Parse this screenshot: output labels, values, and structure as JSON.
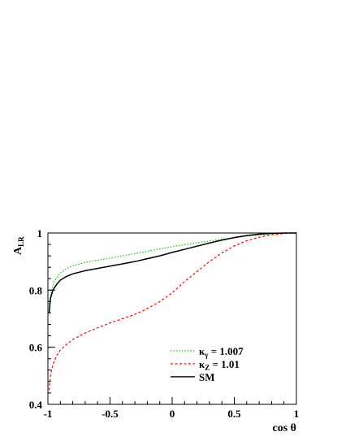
{
  "chart_data": {
    "type": "line",
    "xlabel": "cos θ",
    "ylabel": {
      "main": "A",
      "sub": "LR"
    },
    "xlim": [
      -1,
      1
    ],
    "ylim": [
      0.4,
      1.0
    ],
    "x_ticks": [
      -1,
      -0.5,
      0,
      0.5,
      1
    ],
    "x_tick_labels": [
      "-1",
      "-0.5",
      "0",
      "0.5",
      "1"
    ],
    "y_ticks": [
      0.4,
      0.6,
      0.8,
      1.0
    ],
    "y_tick_labels": [
      "0.4",
      "0.6",
      "0.8",
      "1"
    ],
    "grid": false,
    "legend_position": "bottom-right",
    "series": [
      {
        "name": "κγ = 1.007",
        "label": {
          "main": "κ",
          "sub": "γ",
          "rest": " = 1.007"
        },
        "color": "#00cc00",
        "style": "dotted",
        "x": [
          -0.99,
          -0.97,
          -0.95,
          -0.9,
          -0.85,
          -0.8,
          -0.7,
          -0.6,
          -0.5,
          -0.4,
          -0.3,
          -0.2,
          -0.1,
          0.0,
          0.1,
          0.2,
          0.3,
          0.4,
          0.5,
          0.6,
          0.7,
          0.8,
          0.9,
          0.95,
          1.0
        ],
        "y": [
          0.75,
          0.8,
          0.83,
          0.86,
          0.875,
          0.885,
          0.897,
          0.905,
          0.912,
          0.92,
          0.928,
          0.936,
          0.944,
          0.952,
          0.959,
          0.966,
          0.972,
          0.978,
          0.984,
          0.989,
          0.993,
          0.997,
          0.999,
          1.0,
          1.0
        ]
      },
      {
        "name": "κZ = 1.01",
        "label": {
          "main": "κ",
          "sub": "Z",
          "rest": " = 1.01"
        },
        "color": "#ff0000",
        "style": "dashed",
        "x": [
          -0.99,
          -0.98,
          -0.96,
          -0.93,
          -0.9,
          -0.85,
          -0.8,
          -0.7,
          -0.6,
          -0.5,
          -0.4,
          -0.3,
          -0.2,
          -0.1,
          0.0,
          0.1,
          0.2,
          0.3,
          0.4,
          0.5,
          0.6,
          0.7,
          0.8,
          0.9,
          0.95,
          1.0
        ],
        "y": [
          0.45,
          0.5,
          0.54,
          0.57,
          0.59,
          0.61,
          0.627,
          0.65,
          0.668,
          0.685,
          0.7,
          0.715,
          0.735,
          0.76,
          0.79,
          0.83,
          0.865,
          0.9,
          0.93,
          0.955,
          0.973,
          0.985,
          0.994,
          0.998,
          1.0,
          1.0
        ]
      },
      {
        "name": "SM",
        "label": {
          "main": "SM",
          "sub": "",
          "rest": ""
        },
        "color": "#000000",
        "style": "solid",
        "x": [
          -0.99,
          -0.98,
          -0.96,
          -0.93,
          -0.9,
          -0.85,
          -0.8,
          -0.7,
          -0.6,
          -0.5,
          -0.4,
          -0.3,
          -0.2,
          -0.1,
          0.0,
          0.1,
          0.2,
          0.3,
          0.4,
          0.5,
          0.6,
          0.7,
          0.8,
          0.9,
          0.95,
          1.0
        ],
        "y": [
          0.72,
          0.77,
          0.8,
          0.82,
          0.835,
          0.848,
          0.857,
          0.868,
          0.876,
          0.884,
          0.892,
          0.9,
          0.91,
          0.92,
          0.932,
          0.943,
          0.954,
          0.965,
          0.975,
          0.984,
          0.991,
          0.996,
          0.999,
          1.0,
          1.0,
          1.0
        ]
      }
    ]
  }
}
